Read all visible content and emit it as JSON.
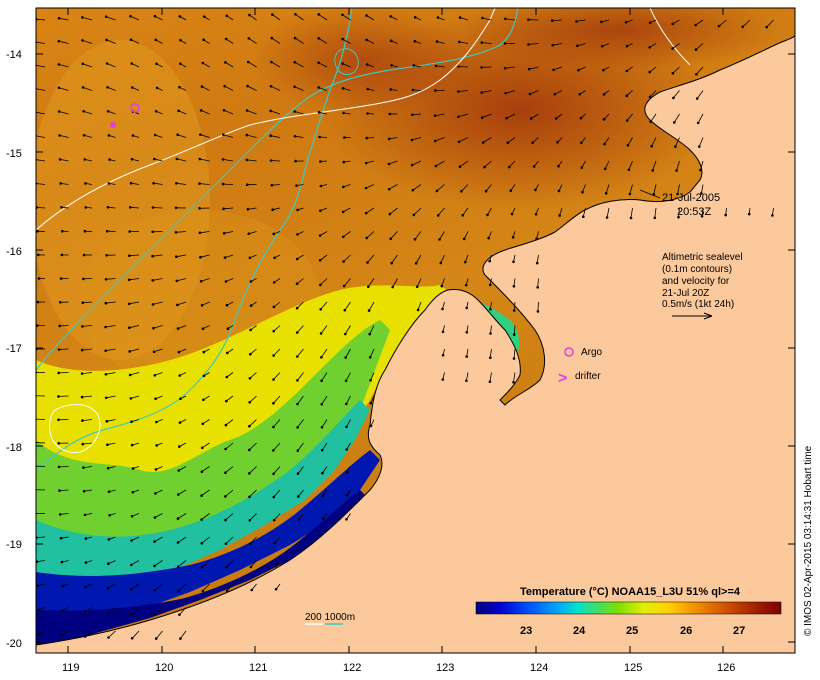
{
  "map": {
    "date": "21-Jul-2005",
    "time": "20:53Z",
    "legend_lines": [
      "Altimetric sealevel",
      "(0.1m contours)",
      "and velocity for",
      "21-Jul 20Z",
      "0.5m/s (1kt 24h)"
    ],
    "argo_label": "Argo",
    "drifter_label": "drifter",
    "drifter_symbol": ">",
    "bathymetry_label": "200  1000m",
    "colorbar_title": "Temperature (°C) NOAA15_L3U 51% ql>=4",
    "credit": "© IMOS 02-Apr-2015 03:14:31 Hobart time",
    "lon_ticks": [
      "119",
      "120",
      "121",
      "122",
      "123",
      "124",
      "125",
      "126"
    ],
    "lat_ticks": [
      "-14",
      "-15",
      "-16",
      "-17",
      "-18",
      "-19",
      "-20"
    ],
    "colorbar_ticks": [
      "23",
      "24",
      "25",
      "26",
      "27"
    ],
    "colors": {
      "land": "#fbc99b",
      "warm_sea": "#c86a0e",
      "hot_sea": "#a3380c",
      "mid_sea": "#e0a020",
      "cool_sea": "#70c030",
      "cold_sea": "#0010a0",
      "argo_marker": "#e040e0",
      "bathy_200m": "#ffffff",
      "bathy_1000m": "#40c8c0"
    }
  }
}
